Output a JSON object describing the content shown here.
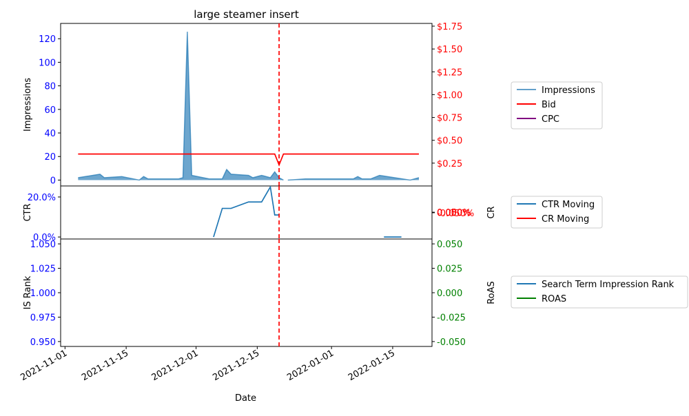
{
  "chart_data": {
    "type": "line",
    "title": "large steamer insert",
    "xlabel": "Date",
    "x_ticks": [
      "2021-11-01",
      "2021-11-15",
      "2021-12-01",
      "2021-12-15",
      "2022-01-01",
      "2022-01-15"
    ],
    "x_range": [
      "2021-10-31",
      "2022-01-24"
    ],
    "event_marker": {
      "date": "2021-12-20",
      "color": "#ff0000",
      "style": "dashed"
    },
    "panels": [
      {
        "id": "impressions",
        "ylabel_left": "Impressions",
        "ylabel_right": "",
        "left_ticks": [
          "0",
          "20",
          "40",
          "60",
          "80",
          "100",
          "120"
        ],
        "left_range": [
          -5,
          133
        ],
        "right_ticks": [
          "$0.25",
          "$0.50",
          "$0.75",
          "$1.00",
          "$1.25",
          "$1.50",
          "$1.75"
        ],
        "right_range": [
          0.0,
          1.78
        ],
        "left_tick_color": "#0000ff",
        "right_tick_color": "#ff0000",
        "legend": [
          "Impressions",
          "Bid",
          "CPC"
        ],
        "series": [
          {
            "name": "Impressions",
            "axis": "left",
            "style": "area",
            "color": "#1f77b4",
            "points": [
              [
                "2021-11-04",
                2
              ],
              [
                "2021-11-09",
                5
              ],
              [
                "2021-11-10",
                2
              ],
              [
                "2021-11-14",
                3
              ],
              [
                "2021-11-18",
                0
              ],
              [
                "2021-11-19",
                3
              ],
              [
                "2021-11-20",
                1
              ],
              [
                "2021-11-24",
                1
              ],
              [
                "2021-11-27",
                1
              ],
              [
                "2021-11-28",
                2
              ],
              [
                "2021-11-29",
                126
              ],
              [
                "2021-11-30",
                4
              ],
              [
                "2021-12-04",
                1
              ],
              [
                "2021-12-07",
                1
              ],
              [
                "2021-12-08",
                9
              ],
              [
                "2021-12-09",
                5
              ],
              [
                "2021-12-13",
                4
              ],
              [
                "2021-12-14",
                2
              ],
              [
                "2021-12-16",
                4
              ],
              [
                "2021-12-18",
                2
              ],
              [
                "2021-12-19",
                7
              ],
              [
                "2021-12-20",
                2
              ],
              [
                "2021-12-21",
                0
              ]
            ]
          },
          {
            "name": "Impressions",
            "axis": "left",
            "style": "area",
            "color": "#1f77b4",
            "points": [
              [
                "2021-12-22",
                0
              ],
              [
                "2021-12-26",
                1
              ],
              [
                "2022-01-06",
                1
              ],
              [
                "2022-01-07",
                3
              ],
              [
                "2022-01-08",
                1
              ],
              [
                "2022-01-10",
                1
              ],
              [
                "2022-01-12",
                4
              ],
              [
                "2022-01-19",
                0
              ],
              [
                "2022-01-21",
                2
              ]
            ]
          },
          {
            "name": "Bid",
            "axis": "right",
            "style": "line",
            "color": "#ff0000",
            "points": [
              [
                "2021-11-04",
                0.35
              ],
              [
                "2021-12-19",
                0.35
              ],
              [
                "2021-12-20",
                0.23
              ],
              [
                "2021-12-21",
                0.35
              ],
              [
                "2022-01-21",
                0.35
              ]
            ]
          },
          {
            "name": "CPC",
            "axis": "right",
            "style": "line",
            "color": "#800080",
            "points": []
          }
        ]
      },
      {
        "id": "ctr",
        "ylabel_left": "CTR",
        "ylabel_right": "CR",
        "left_ticks": [
          "0.0%",
          "20.0%"
        ],
        "left_range": [
          -0.01,
          0.255
        ],
        "right_ticks": [
          "-0.050%",
          "0.000%",
          "0.050%"
        ],
        "right_range": [
          -0.05,
          0.05
        ],
        "left_tick_color": "#0000ff",
        "right_tick_color": "#ff0000",
        "legend": [
          "CTR Moving",
          "CR Moving"
        ],
        "series": [
          {
            "name": "CTR Moving",
            "axis": "left",
            "style": "line",
            "color": "#1f77b4",
            "points": [
              [
                "2021-12-05",
                0.0
              ],
              [
                "2021-12-07",
                0.143
              ],
              [
                "2021-12-09",
                0.143
              ],
              [
                "2021-12-13",
                0.175
              ],
              [
                "2021-12-16",
                0.175
              ],
              [
                "2021-12-18",
                0.25
              ],
              [
                "2021-12-19",
                0.11
              ],
              [
                "2021-12-20",
                0.11
              ]
            ]
          },
          {
            "name": "CTR Moving",
            "axis": "left",
            "style": "line",
            "color": "#1f77b4",
            "points": [
              [
                "2022-01-13",
                0.0
              ],
              [
                "2022-01-17",
                0.0
              ]
            ]
          },
          {
            "name": "CR Moving",
            "axis": "right",
            "style": "line",
            "color": "#ff0000",
            "points": []
          }
        ]
      },
      {
        "id": "rank",
        "ylabel_left": "IS Rank",
        "ylabel_right": "RoAS",
        "left_ticks": [
          "0.950",
          "0.975",
          "1.000",
          "1.025",
          "1.050"
        ],
        "left_range": [
          0.945,
          1.055
        ],
        "right_ticks": [
          "-0.050",
          "-0.025",
          "0.000",
          "0.025",
          "0.050"
        ],
        "right_range": [
          -0.055,
          0.055
        ],
        "left_tick_color": "#0000ff",
        "right_tick_color": "#008000",
        "legend": [
          "Search Term Impression Rank",
          "ROAS"
        ],
        "series": [
          {
            "name": "Search Term Impression Rank",
            "axis": "left",
            "style": "line",
            "color": "#1f77b4",
            "points": []
          },
          {
            "name": "ROAS",
            "axis": "right",
            "style": "line",
            "color": "#008000",
            "points": []
          }
        ]
      }
    ]
  }
}
